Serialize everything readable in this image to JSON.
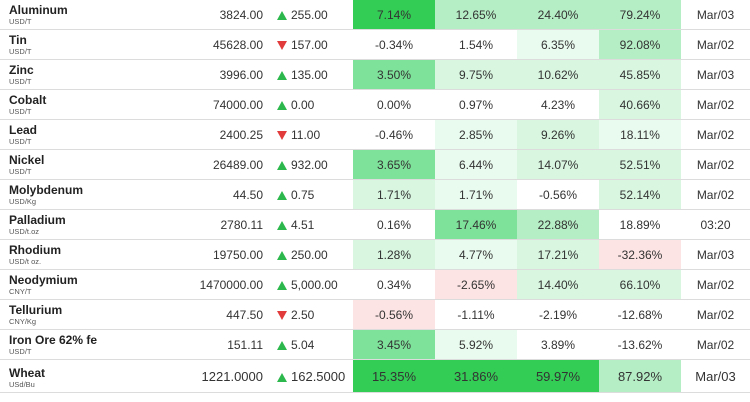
{
  "rows": [
    {
      "name": "Aluminum",
      "unit": "USD/T",
      "price": "3824.00",
      "dir": "up",
      "change": "255.00",
      "day": "7.14%",
      "week": "12.65%",
      "month": "24.40%",
      "year": "79.24%",
      "date": "Mar/03",
      "c": [
        "strong",
        "mid",
        "mid",
        "mid"
      ]
    },
    {
      "name": "Tin",
      "unit": "USD/T",
      "price": "45628.00",
      "dir": "down",
      "change": "157.00",
      "day": "-0.34%",
      "week": "1.54%",
      "month": "6.35%",
      "year": "92.08%",
      "date": "Mar/02",
      "c": [
        "none",
        "none",
        "pale",
        "mid"
      ]
    },
    {
      "name": "Zinc",
      "unit": "USD/T",
      "price": "3996.00",
      "dir": "up",
      "change": "135.00",
      "day": "3.50%",
      "week": "9.75%",
      "month": "10.62%",
      "year": "45.85%",
      "date": "Mar/03",
      "c": [
        "green",
        "light",
        "light",
        "light"
      ]
    },
    {
      "name": "Cobalt",
      "unit": "USD/T",
      "price": "74000.00",
      "dir": "up",
      "change": "0.00",
      "day": "0.00%",
      "week": "0.97%",
      "month": "4.23%",
      "year": "40.66%",
      "date": "Mar/02",
      "c": [
        "none",
        "none",
        "none",
        "light"
      ]
    },
    {
      "name": "Lead",
      "unit": "USD/T",
      "price": "2400.25",
      "dir": "down",
      "change": "11.00",
      "day": "-0.46%",
      "week": "2.85%",
      "month": "9.26%",
      "year": "18.11%",
      "date": "Mar/02",
      "c": [
        "none",
        "pale",
        "light",
        "pale"
      ]
    },
    {
      "name": "Nickel",
      "unit": "USD/T",
      "price": "26489.00",
      "dir": "up",
      "change": "932.00",
      "day": "3.65%",
      "week": "6.44%",
      "month": "14.07%",
      "year": "52.51%",
      "date": "Mar/02",
      "c": [
        "green",
        "pale",
        "light",
        "light"
      ]
    },
    {
      "name": "Molybdenum",
      "unit": "USD/Kg",
      "price": "44.50",
      "dir": "up",
      "change": "0.75",
      "day": "1.71%",
      "week": "1.71%",
      "month": "-0.56%",
      "year": "52.14%",
      "date": "Mar/02",
      "c": [
        "light",
        "pale",
        "none",
        "light"
      ]
    },
    {
      "name": "Palladium",
      "unit": "USD/t.oz",
      "price": "2780.11",
      "dir": "up",
      "change": "4.51",
      "day": "0.16%",
      "week": "17.46%",
      "month": "22.88%",
      "year": "18.89%",
      "date": "03:20",
      "c": [
        "none",
        "green",
        "mid",
        "none"
      ]
    },
    {
      "name": "Rhodium",
      "unit": "USD/t oz.",
      "price": "19750.00",
      "dir": "up",
      "change": "250.00",
      "day": "1.28%",
      "week": "4.77%",
      "month": "17.21%",
      "year": "-32.36%",
      "date": "Mar/03",
      "c": [
        "light",
        "pale",
        "light",
        "redpale"
      ]
    },
    {
      "name": "Neodymium",
      "unit": "CNY/T",
      "price": "1470000.00",
      "dir": "up",
      "change": "5,000.00",
      "day": "0.34%",
      "week": "-2.65%",
      "month": "14.40%",
      "year": "66.10%",
      "date": "Mar/02",
      "c": [
        "none",
        "redpale",
        "light",
        "light"
      ]
    },
    {
      "name": "Tellurium",
      "unit": "CNY/Kg",
      "price": "447.50",
      "dir": "down",
      "change": "2.50",
      "day": "-0.56%",
      "week": "-1.11%",
      "month": "-2.19%",
      "year": "-12.68%",
      "date": "Mar/02",
      "c": [
        "redpale",
        "none",
        "none",
        "none"
      ]
    },
    {
      "name": "Iron Ore 62% fe",
      "unit": "USD/T",
      "price": "151.11",
      "dir": "up",
      "change": "5.04",
      "day": "3.45%",
      "week": "5.92%",
      "month": "3.89%",
      "year": "-13.62%",
      "date": "Mar/02",
      "c": [
        "green",
        "pale",
        "none",
        "none"
      ]
    }
  ],
  "featured": {
    "name": "Wheat",
    "unit": "USd/Bu",
    "price": "1221.0000",
    "dir": "up",
    "change": "162.5000",
    "day": "15.35%",
    "week": "31.86%",
    "month": "59.97%",
    "year": "87.92%",
    "date": "Mar/03",
    "c": [
      "strong",
      "strong",
      "strong",
      "mid"
    ]
  },
  "colors": {
    "up": "#2db84d",
    "down": "#e23b3b",
    "strong": "#33cc55",
    "green": "#7ee29a",
    "mid": "#b5edc4",
    "light": "#d8f6e0",
    "pale": "#e9faee",
    "redpale": "#fde4e4"
  }
}
